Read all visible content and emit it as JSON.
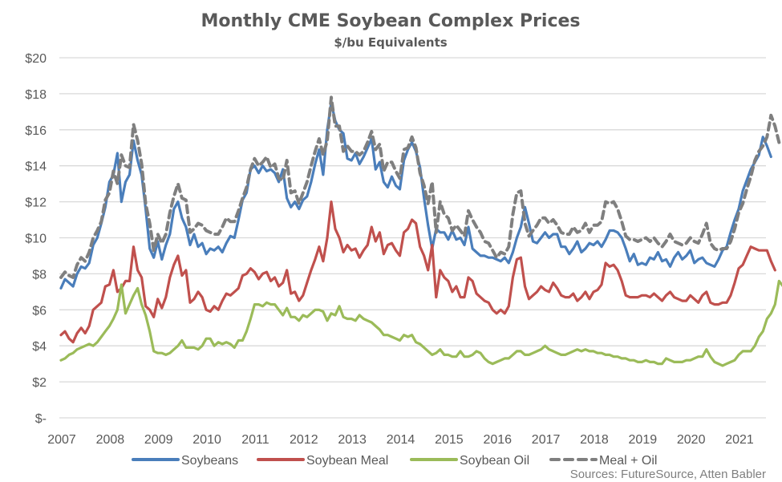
{
  "chart_data": {
    "type": "line",
    "title": "Monthly CME Soybean Complex Prices",
    "subtitle": "$/bu Equivalents",
    "xlabel": "",
    "ylabel": "",
    "ylim": [
      0,
      20
    ],
    "y_ticks": [
      0,
      2,
      4,
      6,
      8,
      10,
      12,
      14,
      16,
      18,
      20
    ],
    "y_tick_labels": [
      "$-",
      "$2",
      "$4",
      "$6",
      "$8",
      "$10",
      "$12",
      "$14",
      "$16",
      "$18",
      "$20"
    ],
    "x_tick_labels": [
      "2007",
      "2008",
      "2009",
      "2010",
      "2011",
      "2012",
      "2013",
      "2014",
      "2015",
      "2016",
      "2017",
      "2018",
      "2019",
      "2020",
      "2021"
    ],
    "x_start": "2007-01",
    "x_frequency": "monthly",
    "grid": true,
    "legend_position": "bottom",
    "source": "Sources: FutureSource, Atten Babler",
    "series": [
      {
        "name": "Soybeans",
        "color": "#4A7EBB",
        "dash": false,
        "values": [
          7.2,
          7.7,
          7.5,
          7.3,
          8.0,
          8.4,
          8.3,
          8.6,
          9.6,
          10.0,
          10.8,
          11.7,
          13.1,
          13.5,
          14.7,
          12.0,
          13.1,
          13.5,
          15.4,
          14.3,
          13.5,
          11.6,
          9.4,
          8.9,
          9.8,
          8.8,
          9.6,
          10.2,
          11.6,
          12.0,
          11.1,
          10.6,
          9.6,
          10.2,
          9.5,
          9.7,
          9.1,
          9.4,
          9.3,
          9.5,
          9.2,
          9.7,
          10.1,
          10.0,
          11.0,
          12.1,
          12.5,
          13.8,
          14.0,
          13.6,
          14.0,
          13.7,
          13.8,
          13.6,
          13.1,
          13.8,
          12.2,
          11.7,
          12.0,
          11.6,
          12.1,
          12.3,
          13.1,
          14.1,
          14.9,
          13.5,
          16.0,
          17.5,
          16.5,
          16.0,
          15.8,
          14.4,
          14.3,
          14.7,
          14.1,
          14.5,
          15.0,
          15.5,
          13.8,
          14.2,
          13.1,
          12.8,
          13.4,
          12.9,
          12.7,
          14.3,
          14.9,
          15.3,
          14.8,
          13.9,
          12.2,
          10.7,
          9.4,
          10.5,
          10.3,
          10.3,
          9.9,
          10.4,
          9.9,
          10.0,
          9.6,
          10.6,
          9.4,
          9.2,
          9.0,
          9.0,
          8.9,
          8.9,
          8.8,
          8.7,
          8.9,
          8.6,
          9.2,
          10.0,
          10.6,
          11.7,
          10.8,
          9.8,
          9.7,
          10.0,
          10.3,
          10.0,
          10.2,
          10.2,
          9.5,
          9.5,
          9.1,
          9.4,
          9.8,
          9.2,
          9.4,
          9.7,
          9.6,
          9.8,
          9.5,
          9.9,
          10.4,
          10.4,
          10.3,
          10.0,
          9.4,
          8.7,
          9.1,
          8.5,
          8.6,
          8.5,
          8.9,
          8.8,
          9.2,
          8.7,
          8.8,
          8.4,
          8.9,
          9.2,
          8.8,
          9.0,
          9.3,
          8.6,
          8.8,
          8.9,
          8.6,
          8.5,
          8.4,
          8.8,
          9.3,
          9.5,
          10.3,
          11.0,
          11.6,
          12.6,
          13.2,
          13.8,
          14.2,
          14.6,
          15.6,
          15.1,
          14.5
        ]
      },
      {
        "name": "Soybean Meal",
        "color": "#C0504D",
        "dash": false,
        "values": [
          4.6,
          4.8,
          4.4,
          4.2,
          4.7,
          5.0,
          4.7,
          5.1,
          6.0,
          6.2,
          6.4,
          7.3,
          7.4,
          8.2,
          7.0,
          7.2,
          7.6,
          7.6,
          9.5,
          8.2,
          7.8,
          6.2,
          6.0,
          5.6,
          6.6,
          6.1,
          6.7,
          7.8,
          8.5,
          9.0,
          7.9,
          8.2,
          6.4,
          6.6,
          7.0,
          6.7,
          6.0,
          5.9,
          6.2,
          6.0,
          6.5,
          6.9,
          6.8,
          7.0,
          7.2,
          7.9,
          8.0,
          8.3,
          8.1,
          7.7,
          8.0,
          8.1,
          7.6,
          7.8,
          7.3,
          7.5,
          8.2,
          6.9,
          7.0,
          6.5,
          6.8,
          7.5,
          8.2,
          8.8,
          9.5,
          8.7,
          10.0,
          12.0,
          10.5,
          10.0,
          9.2,
          9.6,
          9.3,
          9.4,
          8.9,
          9.3,
          9.6,
          10.6,
          9.8,
          10.3,
          9.1,
          9.6,
          9.7,
          9.3,
          9.0,
          10.3,
          10.5,
          11.0,
          10.8,
          9.5,
          9.0,
          8.2,
          9.6,
          6.7,
          8.2,
          7.8,
          7.6,
          7.0,
          7.3,
          6.7,
          6.7,
          7.8,
          7.6,
          6.9,
          6.7,
          6.5,
          6.4,
          6.0,
          5.8,
          6.0,
          5.8,
          6.2,
          7.8,
          8.8,
          8.9,
          7.3,
          6.6,
          6.8,
          7.0,
          7.3,
          7.1,
          7.0,
          7.5,
          7.2,
          6.8,
          6.7,
          6.7,
          6.9,
          6.5,
          6.7,
          7.0,
          6.6,
          7.0,
          7.1,
          7.4,
          8.6,
          8.4,
          8.5,
          8.2,
          7.6,
          6.8,
          6.7,
          6.7,
          6.7,
          6.8,
          6.8,
          6.7,
          6.9,
          6.7,
          6.5,
          6.8,
          7.0,
          6.7,
          6.6,
          6.5,
          6.5,
          6.8,
          6.6,
          6.4,
          6.8,
          7.0,
          6.4,
          6.3,
          6.3,
          6.4,
          6.4,
          6.8,
          7.5,
          8.3,
          8.5,
          9.0,
          9.5,
          9.4,
          9.3,
          9.3,
          9.3,
          8.7,
          8.2
        ]
      },
      {
        "name": "Soybean Oil",
        "color": "#9BBB59",
        "dash": false,
        "values": [
          3.2,
          3.3,
          3.5,
          3.6,
          3.8,
          3.9,
          4.0,
          4.1,
          4.0,
          4.2,
          4.5,
          4.8,
          5.1,
          5.5,
          6.0,
          7.4,
          5.8,
          6.3,
          6.8,
          7.2,
          6.3,
          5.7,
          4.8,
          3.7,
          3.6,
          3.6,
          3.5,
          3.6,
          3.8,
          4.0,
          4.3,
          3.9,
          3.9,
          3.9,
          3.8,
          4.0,
          4.4,
          4.4,
          4.0,
          4.2,
          4.1,
          4.2,
          4.1,
          3.9,
          4.3,
          4.3,
          4.8,
          5.5,
          6.3,
          6.3,
          6.2,
          6.4,
          6.3,
          6.3,
          6.0,
          5.7,
          6.1,
          5.6,
          5.6,
          5.4,
          5.7,
          5.6,
          5.8,
          6.0,
          6.0,
          5.9,
          5.4,
          5.8,
          5.7,
          6.2,
          5.6,
          5.5,
          5.5,
          5.4,
          5.7,
          5.5,
          5.4,
          5.3,
          5.1,
          4.9,
          4.6,
          4.6,
          4.5,
          4.4,
          4.3,
          4.6,
          4.5,
          4.6,
          4.2,
          4.1,
          3.9,
          3.7,
          3.5,
          3.6,
          3.8,
          3.5,
          3.5,
          3.4,
          3.4,
          3.7,
          3.4,
          3.4,
          3.5,
          3.7,
          3.6,
          3.3,
          3.1,
          3.0,
          3.1,
          3.2,
          3.3,
          3.3,
          3.5,
          3.7,
          3.7,
          3.5,
          3.5,
          3.6,
          3.7,
          3.8,
          4.0,
          3.8,
          3.7,
          3.6,
          3.5,
          3.5,
          3.6,
          3.7,
          3.8,
          3.7,
          3.8,
          3.7,
          3.7,
          3.6,
          3.6,
          3.5,
          3.5,
          3.4,
          3.4,
          3.3,
          3.3,
          3.2,
          3.2,
          3.1,
          3.1,
          3.2,
          3.1,
          3.1,
          3.0,
          3.0,
          3.3,
          3.2,
          3.1,
          3.1,
          3.1,
          3.2,
          3.2,
          3.3,
          3.4,
          3.4,
          3.8,
          3.4,
          3.1,
          3.0,
          2.9,
          3.0,
          3.1,
          3.2,
          3.5,
          3.7,
          3.7,
          3.7,
          4.0,
          4.5,
          4.8,
          5.5,
          5.8,
          6.3,
          7.6,
          7.3,
          7.1
        ]
      },
      {
        "name": "Meal + Oil",
        "color": "#7F7F7F",
        "dash": true,
        "values": [
          7.8,
          8.1,
          7.9,
          7.8,
          8.5,
          8.9,
          8.7,
          9.2,
          10.0,
          10.4,
          10.9,
          12.1,
          12.5,
          13.7,
          13.0,
          14.6,
          14.0,
          13.9,
          16.3,
          15.4,
          14.1,
          11.9,
          10.8,
          9.3,
          10.2,
          9.7,
          10.2,
          11.4,
          12.3,
          13.0,
          12.2,
          12.1,
          10.3,
          10.5,
          10.8,
          10.7,
          10.4,
          10.3,
          10.2,
          10.2,
          10.6,
          11.1,
          10.9,
          10.9,
          11.5,
          12.2,
          12.8,
          13.8,
          14.4,
          14.0,
          14.2,
          14.5,
          13.9,
          14.1,
          13.3,
          13.2,
          14.3,
          12.5,
          12.6,
          11.9,
          12.5,
          13.1,
          14.0,
          14.8,
          15.5,
          14.6,
          15.4,
          17.8,
          16.2,
          16.2,
          14.8,
          15.1,
          14.8,
          14.8,
          14.6,
          14.8,
          15.3,
          15.9,
          14.9,
          15.2,
          13.7,
          14.2,
          14.2,
          13.7,
          13.3,
          14.9,
          15.0,
          15.6,
          15.0,
          13.6,
          12.9,
          11.9,
          13.1,
          10.3,
          12.0,
          11.3,
          11.1,
          10.4,
          10.7,
          10.4,
          10.1,
          11.5,
          11.0,
          10.6,
          10.3,
          9.8,
          9.7,
          9.3,
          8.9,
          9.2,
          9.1,
          9.5,
          11.3,
          12.5,
          12.6,
          10.8,
          10.1,
          10.4,
          10.7,
          11.1,
          11.1,
          10.8,
          11.0,
          10.7,
          10.3,
          10.2,
          10.2,
          10.6,
          10.3,
          10.4,
          10.8,
          10.3,
          10.7,
          10.7,
          10.9,
          12.0,
          11.9,
          12.0,
          11.6,
          10.9,
          10.1,
          9.9,
          9.9,
          9.8,
          9.9,
          10.0,
          9.8,
          10.0,
          9.7,
          9.5,
          9.8,
          10.2,
          9.8,
          9.7,
          9.6,
          9.7,
          10.0,
          9.8,
          9.7,
          10.2,
          10.8,
          9.7,
          9.4,
          9.3,
          9.4,
          9.4,
          9.8,
          10.5,
          11.4,
          11.9,
          12.7,
          13.4,
          14.3,
          14.8,
          15.1,
          15.6,
          16.8,
          16.2,
          15.3
        ]
      }
    ]
  }
}
